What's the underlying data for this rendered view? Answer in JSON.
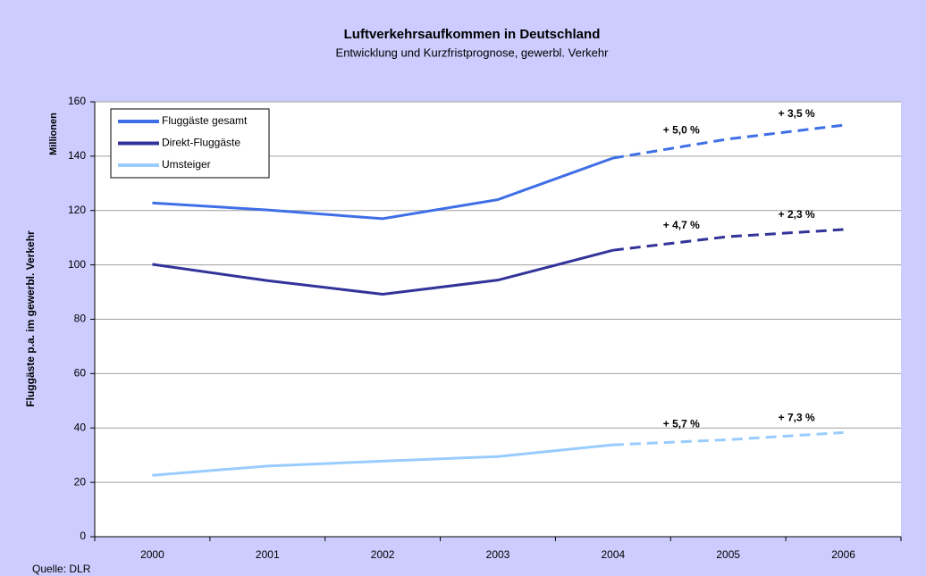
{
  "chart_data": {
    "type": "line",
    "title": "Luftverkehrsaufkommen in Deutschland",
    "subtitle": "Entwicklung und Kurzfristprognose, gewerbl. Verkehr",
    "y_label": "Fluggäste p.a. im gewerbl. Verkehr",
    "y_unit": "Millionen",
    "source": "Quelle: DLR",
    "categories": [
      "2000",
      "2001",
      "2002",
      "2003",
      "2004",
      "2005",
      "2006"
    ],
    "forecast_from": "2004",
    "series": [
      {
        "name": "Fluggäste gesamt",
        "color": "#3f6fe6",
        "values": [
          122.8,
          120.2,
          117,
          124,
          139.3,
          146.3,
          151.4
        ],
        "annotations": [
          "+ 5,0 %",
          "+ 3,5 %"
        ]
      },
      {
        "name": "Direkt-Fluggäste",
        "color": "#333399",
        "values": [
          100.2,
          94.2,
          89.2,
          94.4,
          105.4,
          110.4,
          113
        ],
        "annotations": [
          "+ 4,7 %",
          "+ 2,3 %"
        ]
      },
      {
        "name": "Umsteiger",
        "color": "#99ccff",
        "values": [
          22.6,
          26.0,
          27.8,
          29.5,
          33.8,
          35.7,
          38.3
        ],
        "annotations": [
          "+ 5,7 %",
          "+ 7,3 %"
        ]
      }
    ],
    "ylim": [
      0,
      160
    ],
    "yticks": [
      0,
      20,
      40,
      60,
      80,
      100,
      120,
      140,
      160
    ],
    "grid": true,
    "legend": "top-left"
  }
}
